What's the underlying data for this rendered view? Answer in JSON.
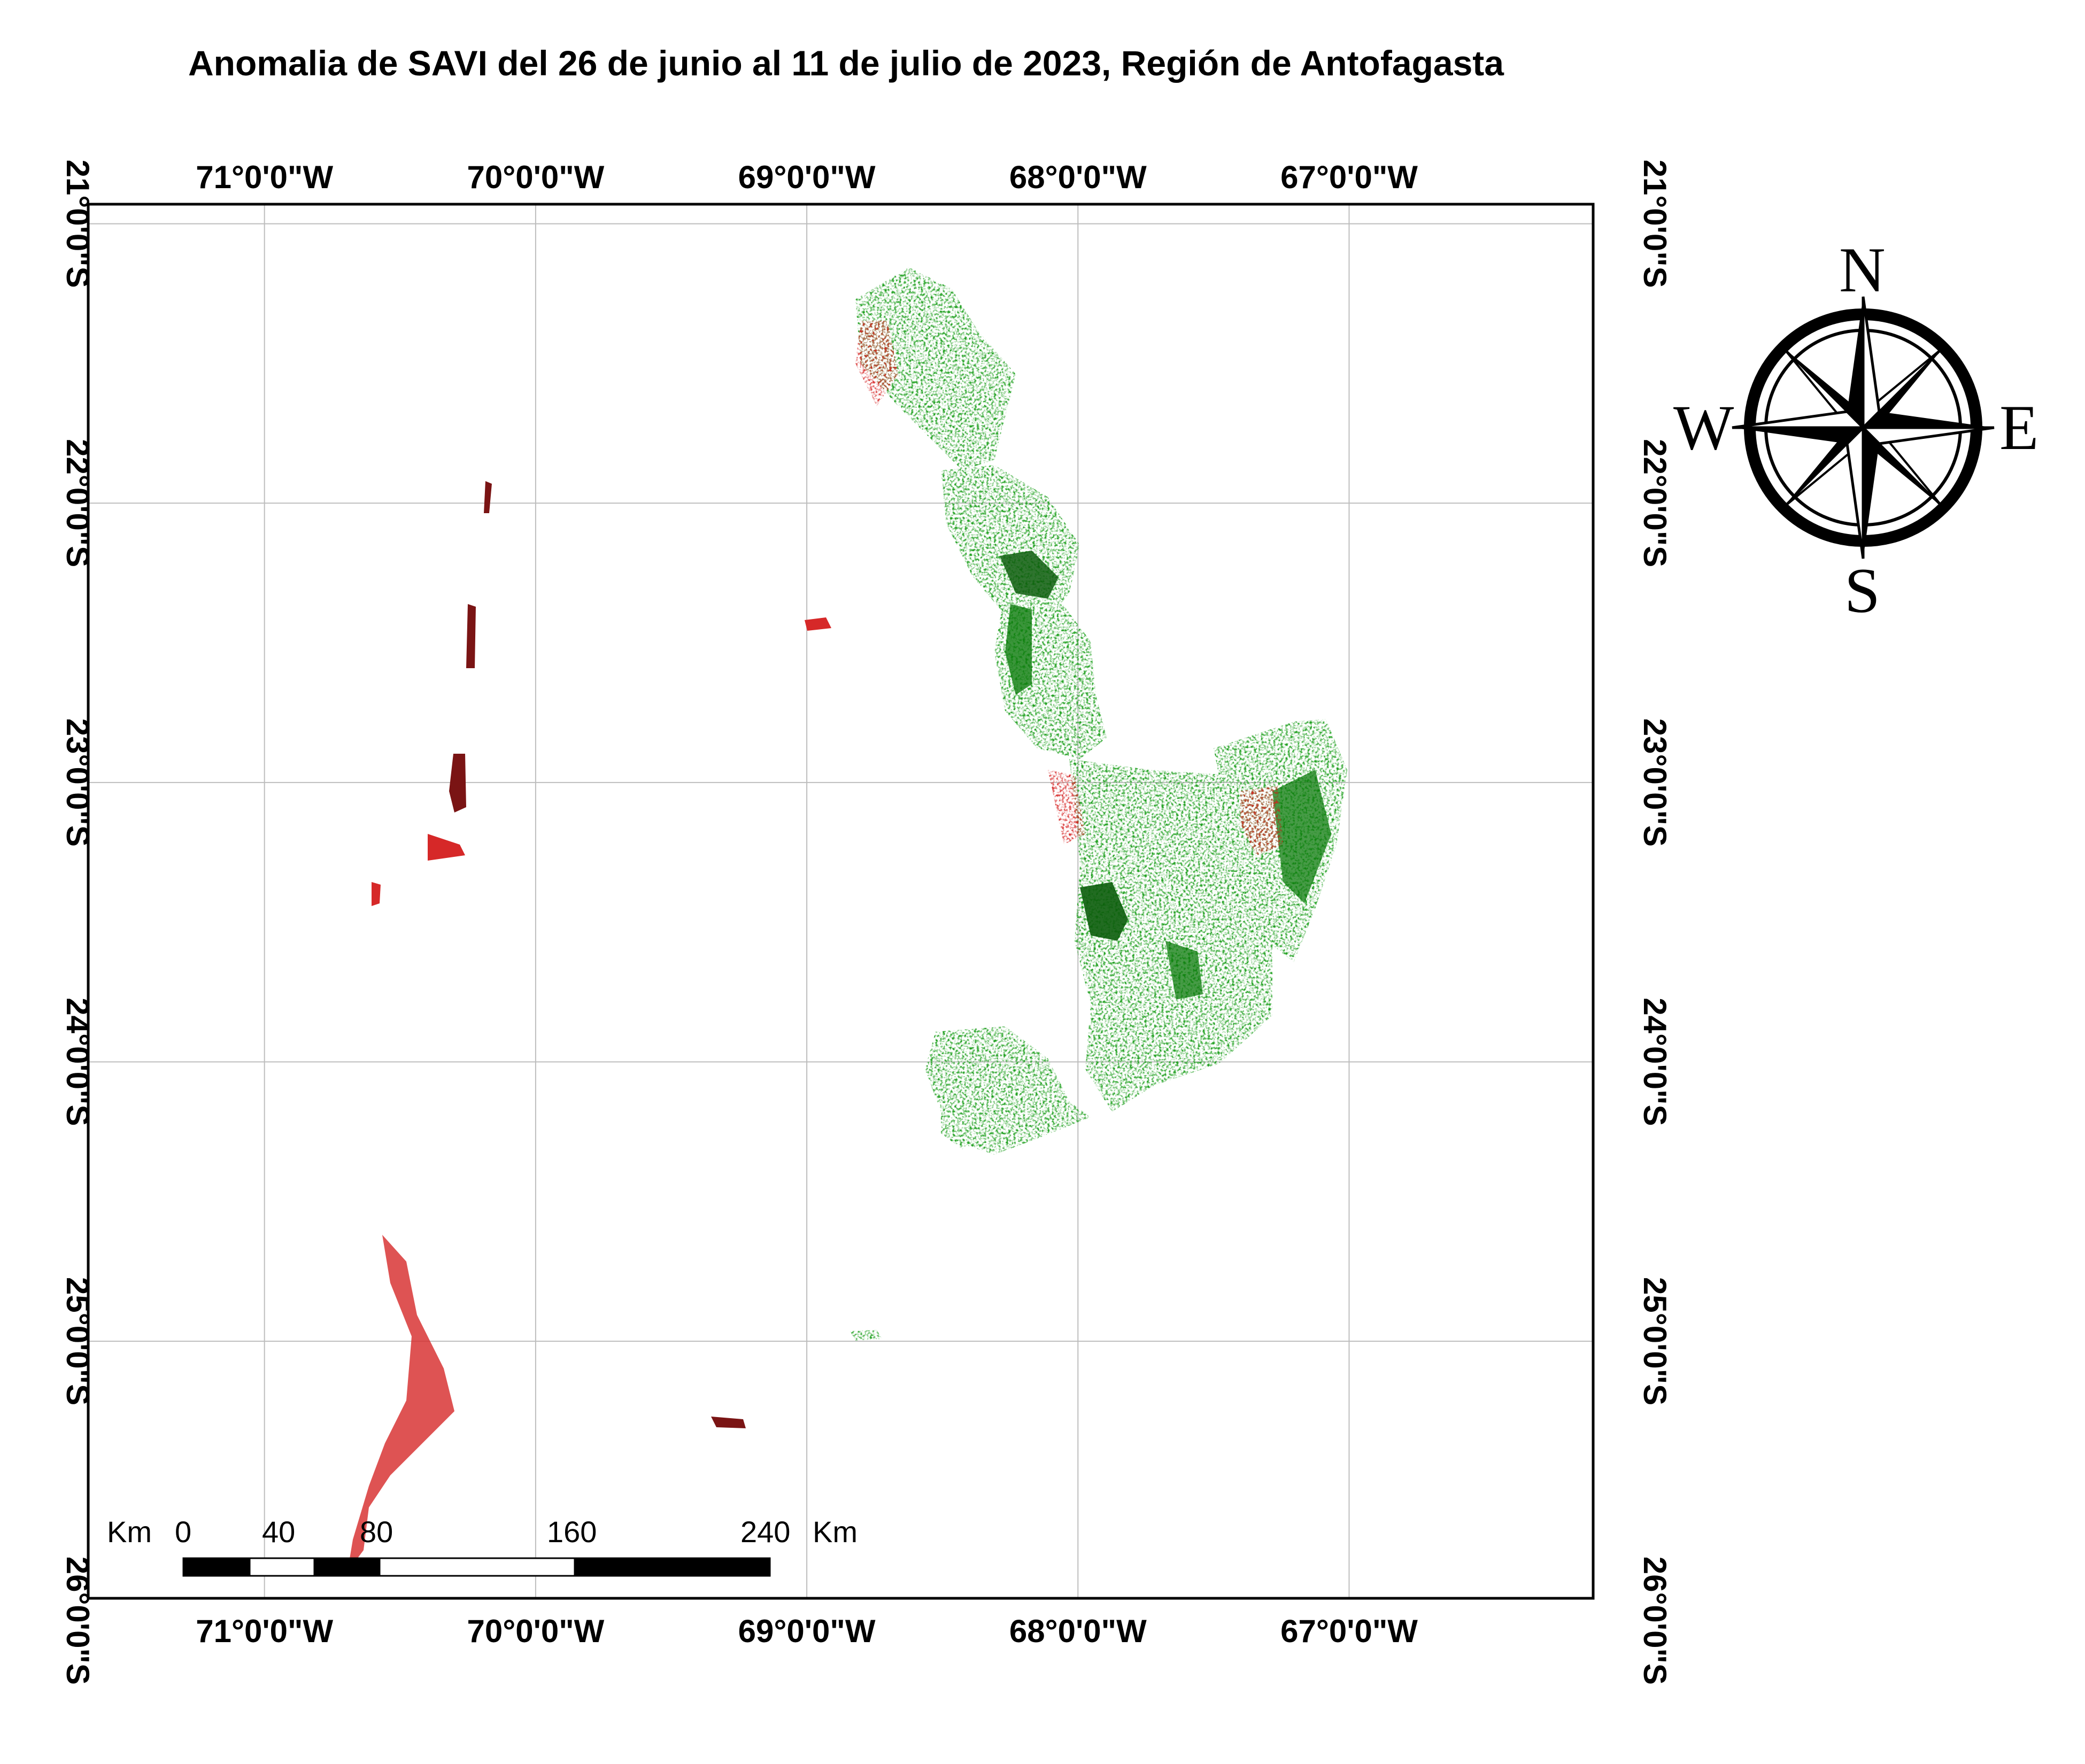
{
  "title": "Anomalia de SAVI del 26 de junio al 11 de julio de 2023, Región de Antofagasta",
  "map": {
    "lon_range": [
      -71.65,
      -66.1
    ],
    "lat_range": [
      -25.92,
      -20.93
    ],
    "lon_ticks": [
      {
        "value": -71,
        "label": "71°0'0\"W"
      },
      {
        "value": -70,
        "label": "70°0'0\"W"
      },
      {
        "value": -69,
        "label": "69°0'0\"W"
      },
      {
        "value": -68,
        "label": "68°0'0\"W"
      },
      {
        "value": -67,
        "label": "67°0'0\"W"
      }
    ],
    "lat_ticks": [
      {
        "value": -21,
        "label": "21°0'0\"S"
      },
      {
        "value": -22,
        "label": "22°0'0\"S"
      },
      {
        "value": -23,
        "label": "23°0'0\"S"
      },
      {
        "value": -24,
        "label": "24°0'0\"S"
      },
      {
        "value": -25,
        "label": "25°0'0\"S"
      },
      {
        "value": -26,
        "label": "26°0'0\"S"
      }
    ],
    "grid": true,
    "colors": {
      "positive_anomaly": "#1a9e1a",
      "strong_positive_anomaly": "#0a5c0a",
      "negative_anomaly": "#d62828",
      "strong_negative_anomaly": "#7a1414",
      "frame": "#000000",
      "grid": "#bdbdbd"
    },
    "scale_bar": {
      "unit_left": "Km",
      "unit_right": "Km",
      "labels": [
        "0",
        "40",
        "80",
        "160",
        "240"
      ]
    },
    "compass": {
      "n": "N",
      "s": "S",
      "e": "E",
      "w": "W"
    }
  }
}
